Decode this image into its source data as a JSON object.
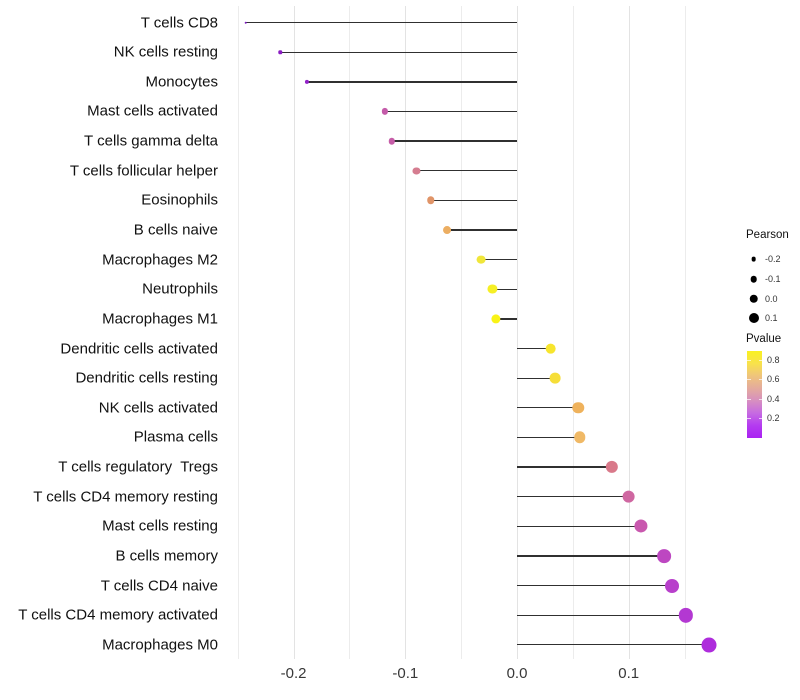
{
  "figure": {
    "background": "#ffffff",
    "stem_color": "#303030",
    "grid_major_color": "#e3e3e3",
    "grid_minor_color": "#ececec"
  },
  "chart_data": {
    "type": "scatter",
    "variant": "lollipop",
    "title": "",
    "xlabel": "",
    "ylabel": "",
    "xlim": [
      -0.262,
      0.196
    ],
    "grid_step": 0.05,
    "x_ticks": [
      {
        "value": -0.2,
        "label": "-0.2"
      },
      {
        "value": -0.1,
        "label": "-0.1"
      },
      {
        "value": 0.0,
        "label": "0.0"
      },
      {
        "value": 0.1,
        "label": "0.1"
      }
    ],
    "points": [
      {
        "label": "T cells CD8",
        "pearson": -0.243,
        "pvalue_approx": 0.04,
        "color": "#7c17c0"
      },
      {
        "label": "NK cells resting",
        "pearson": -0.212,
        "pvalue_approx": 0.07,
        "color": "#8a1cc2"
      },
      {
        "label": "Monocytes",
        "pearson": -0.188,
        "pvalue_approx": 0.1,
        "color": "#9322c8"
      },
      {
        "label": "Mast cells activated",
        "pearson": -0.118,
        "pvalue_approx": 0.33,
        "color": "#c45ba9"
      },
      {
        "label": "T cells gamma delta",
        "pearson": -0.112,
        "pvalue_approx": 0.34,
        "color": "#c65da8"
      },
      {
        "label": "T cells follicular helper",
        "pearson": -0.09,
        "pvalue_approx": 0.46,
        "color": "#d57d90"
      },
      {
        "label": "Eosinophils",
        "pearson": -0.077,
        "pvalue_approx": 0.55,
        "color": "#e09468"
      },
      {
        "label": "B cells naive",
        "pearson": -0.063,
        "pvalue_approx": 0.63,
        "color": "#ecae62"
      },
      {
        "label": "Macrophages M2",
        "pearson": -0.032,
        "pvalue_approx": 0.8,
        "color": "#f0e63a"
      },
      {
        "label": "Neutrophils",
        "pearson": -0.022,
        "pvalue_approx": 0.86,
        "color": "#f6ef25"
      },
      {
        "label": "Macrophages M1",
        "pearson": -0.019,
        "pvalue_approx": 0.89,
        "color": "#f9f316"
      },
      {
        "label": "Dendritic cells activated",
        "pearson": 0.03,
        "pvalue_approx": 0.82,
        "color": "#f7e52d"
      },
      {
        "label": "Dendritic cells resting",
        "pearson": 0.034,
        "pvalue_approx": 0.77,
        "color": "#f6de38"
      },
      {
        "label": "NK cells activated",
        "pearson": 0.055,
        "pvalue_approx": 0.62,
        "color": "#efb25c"
      },
      {
        "label": "Plasma cells",
        "pearson": 0.056,
        "pvalue_approx": 0.64,
        "color": "#f0b966"
      },
      {
        "label": "T cells regulatory  Tregs",
        "pearson": 0.085,
        "pvalue_approx": 0.48,
        "color": "#d9798a"
      },
      {
        "label": "T cells CD4 memory resting",
        "pearson": 0.1,
        "pvalue_approx": 0.4,
        "color": "#cf67a1"
      },
      {
        "label": "Mast cells resting",
        "pearson": 0.111,
        "pvalue_approx": 0.33,
        "color": "#c958ae"
      },
      {
        "label": "B cells memory",
        "pearson": 0.132,
        "pvalue_approx": 0.26,
        "color": "#bd47c1"
      },
      {
        "label": "T cells CD4 naive",
        "pearson": 0.139,
        "pvalue_approx": 0.23,
        "color": "#b840cb"
      },
      {
        "label": "T cells CD4 memory activated",
        "pearson": 0.151,
        "pvalue_approx": 0.19,
        "color": "#b338d2"
      },
      {
        "label": "Macrophages M0",
        "pearson": 0.172,
        "pvalue_approx": 0.14,
        "color": "#ae2cdc"
      }
    ],
    "legend_size": {
      "title": "Pearson",
      "entries": [
        {
          "label": "-0.2",
          "diameter": 4.7
        },
        {
          "label": "-0.1",
          "diameter": 6.6
        },
        {
          "label": "0.0",
          "diameter": 8.5
        },
        {
          "label": "0.1",
          "diameter": 10.0
        }
      ]
    },
    "legend_color": {
      "title": "Pvalue",
      "ticks": [
        {
          "value": 0.8,
          "label": "0.8"
        },
        {
          "value": 0.6,
          "label": "0.6"
        },
        {
          "value": 0.4,
          "label": "0.4"
        },
        {
          "value": 0.2,
          "label": "0.2"
        }
      ],
      "range_top_to_bottom": [
        0.89,
        0.0
      ],
      "gradient_top_to_bottom": [
        "#f9f121",
        "#f8e24b",
        "#efc47c",
        "#e4ab9d",
        "#d78fc0",
        "#c66ae2",
        "#b43bf0",
        "#aa22f2"
      ]
    },
    "legend_position": "right",
    "grid": true
  }
}
